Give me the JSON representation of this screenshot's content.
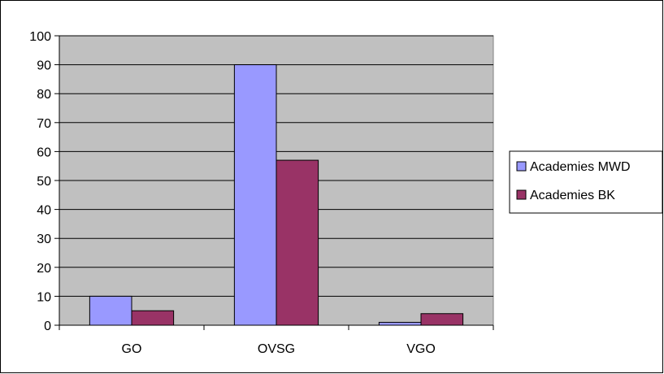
{
  "chart_data": {
    "type": "bar",
    "categories": [
      "GO",
      "OVSG",
      "VGO"
    ],
    "series": [
      {
        "name": "Academies MWD",
        "values": [
          10,
          90,
          1
        ],
        "color": "#9999ff"
      },
      {
        "name": "Academies BK",
        "values": [
          5,
          57,
          4
        ],
        "color": "#993366"
      }
    ],
    "ylim": [
      0,
      100
    ],
    "yticks": [
      0,
      10,
      20,
      30,
      40,
      50,
      60,
      70,
      80,
      90,
      100
    ],
    "grid": true,
    "legend_position": "right",
    "plot_background": "#c0c0c0"
  }
}
